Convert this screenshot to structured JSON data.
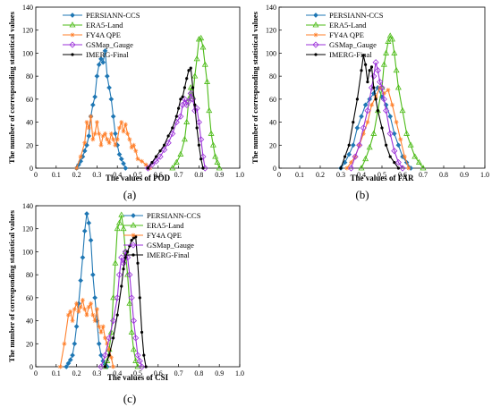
{
  "colors": {
    "PERSIANN-CCS": "#1f77b4",
    "ERA5-Land": "#4cbb17",
    "FY4A QPE": "#ff7f2a",
    "GSMap_Gauge": "#9b30d9",
    "IMERG-Final": "#000000"
  },
  "chart_data": [
    {
      "type": "line",
      "panel_label": "(a)",
      "xlabel": "The values of POD",
      "ylabel": "The number of corresponding statistical values",
      "xlim": [
        0,
        1.0
      ],
      "ylim": [
        0,
        140
      ],
      "xticks": [
        "0",
        "0.1",
        "0.2",
        "0.3",
        "0.4",
        "0.5",
        "0.6",
        "0.7",
        "0.8",
        "0.9",
        "1.0"
      ],
      "yticks": [
        "0",
        "20",
        "40",
        "60",
        "80",
        "100",
        "120",
        "140"
      ],
      "legend_position": "top-left",
      "series": [
        {
          "name": "PERSIANN-CCS",
          "x": [
            0.2,
            0.21,
            0.22,
            0.23,
            0.24,
            0.25,
            0.26,
            0.27,
            0.28,
            0.29,
            0.3,
            0.31,
            0.32,
            0.33,
            0.34,
            0.35,
            0.36,
            0.37,
            0.38,
            0.39,
            0.4,
            0.41,
            0.42,
            0.43,
            0.44
          ],
          "y": [
            0,
            3,
            6,
            10,
            15,
            20,
            28,
            45,
            55,
            62,
            80,
            90,
            95,
            92,
            102,
            80,
            70,
            60,
            45,
            30,
            20,
            12,
            8,
            4,
            0
          ]
        },
        {
          "name": "ERA5-Land",
          "x": [
            0.67,
            0.69,
            0.71,
            0.73,
            0.74,
            0.75,
            0.76,
            0.77,
            0.78,
            0.79,
            0.8,
            0.81,
            0.82,
            0.83,
            0.84,
            0.85,
            0.86,
            0.87,
            0.88,
            0.89,
            0.9
          ],
          "y": [
            0,
            5,
            12,
            25,
            40,
            60,
            70,
            62,
            80,
            95,
            112,
            113,
            105,
            90,
            75,
            50,
            30,
            20,
            10,
            5,
            0
          ]
        },
        {
          "name": "FY4A QPE",
          "x": [
            0.2,
            0.22,
            0.24,
            0.25,
            0.26,
            0.27,
            0.28,
            0.29,
            0.3,
            0.31,
            0.32,
            0.33,
            0.34,
            0.35,
            0.36,
            0.37,
            0.38,
            0.39,
            0.4,
            0.41,
            0.42,
            0.43,
            0.44,
            0.45,
            0.46,
            0.47,
            0.48,
            0.49,
            0.5,
            0.52,
            0.54,
            0.56
          ],
          "y": [
            0,
            10,
            22,
            40,
            35,
            45,
            25,
            30,
            40,
            30,
            20,
            28,
            30,
            25,
            22,
            30,
            25,
            20,
            25,
            35,
            40,
            32,
            38,
            30,
            25,
            18,
            20,
            15,
            8,
            6,
            3,
            0
          ]
        },
        {
          "name": "GSMap_Gauge",
          "x": [
            0.55,
            0.57,
            0.59,
            0.61,
            0.63,
            0.65,
            0.67,
            0.69,
            0.71,
            0.72,
            0.73,
            0.74,
            0.75,
            0.76,
            0.77,
            0.78,
            0.79,
            0.8,
            0.81,
            0.82,
            0.83
          ],
          "y": [
            0,
            3,
            6,
            10,
            16,
            22,
            30,
            40,
            45,
            55,
            60,
            55,
            58,
            65,
            60,
            50,
            52,
            40,
            25,
            10,
            0
          ]
        },
        {
          "name": "IMERG-Final",
          "x": [
            0.55,
            0.57,
            0.59,
            0.61,
            0.63,
            0.65,
            0.67,
            0.69,
            0.7,
            0.71,
            0.72,
            0.73,
            0.74,
            0.75,
            0.76,
            0.77,
            0.78,
            0.79,
            0.8,
            0.81,
            0.82
          ],
          "y": [
            0,
            5,
            10,
            15,
            20,
            28,
            35,
            45,
            52,
            60,
            62,
            70,
            78,
            85,
            87,
            70,
            55,
            35,
            20,
            8,
            0
          ]
        }
      ]
    },
    {
      "type": "line",
      "panel_label": "(b)",
      "xlabel": "The values of FAR",
      "ylabel": "The number of corresponding statistical values",
      "xlim": [
        0,
        1.0
      ],
      "ylim": [
        0,
        140
      ],
      "xticks": [
        "0",
        "0.1",
        "0.2",
        "0.3",
        "0.4",
        "0.5",
        "0.6",
        "0.7",
        "0.8",
        "0.9",
        "1.0"
      ],
      "yticks": [
        "0",
        "20",
        "40",
        "60",
        "80",
        "100",
        "120",
        "140"
      ],
      "legend_position": "top-left",
      "series": [
        {
          "name": "PERSIANN-CCS",
          "x": [
            0.3,
            0.32,
            0.34,
            0.36,
            0.38,
            0.4,
            0.42,
            0.44,
            0.46,
            0.48,
            0.5,
            0.52,
            0.54,
            0.56,
            0.58,
            0.6,
            0.62,
            0.64
          ],
          "y": [
            0,
            5,
            12,
            20,
            35,
            45,
            55,
            60,
            65,
            70,
            62,
            55,
            45,
            30,
            20,
            10,
            5,
            0
          ]
        },
        {
          "name": "ERA5-Land",
          "x": [
            0.4,
            0.42,
            0.44,
            0.46,
            0.48,
            0.5,
            0.51,
            0.52,
            0.53,
            0.54,
            0.55,
            0.56,
            0.57,
            0.58,
            0.6,
            0.62,
            0.64,
            0.66,
            0.68,
            0.7
          ],
          "y": [
            0,
            8,
            18,
            30,
            50,
            70,
            90,
            100,
            110,
            115,
            112,
            100,
            85,
            70,
            50,
            30,
            20,
            10,
            5,
            0
          ]
        },
        {
          "name": "FY4A QPE",
          "x": [
            0.33,
            0.35,
            0.37,
            0.39,
            0.41,
            0.43,
            0.45,
            0.47,
            0.49,
            0.51,
            0.53,
            0.55,
            0.57,
            0.59,
            0.61,
            0.63
          ],
          "y": [
            0,
            5,
            10,
            20,
            30,
            40,
            55,
            62,
            70,
            65,
            68,
            55,
            40,
            25,
            10,
            0
          ]
        },
        {
          "name": "GSMap_Gauge",
          "x": [
            0.35,
            0.37,
            0.39,
            0.41,
            0.43,
            0.45,
            0.46,
            0.47,
            0.48,
            0.49,
            0.5,
            0.51,
            0.52,
            0.54,
            0.56,
            0.58,
            0.6
          ],
          "y": [
            0,
            10,
            20,
            35,
            50,
            70,
            80,
            92,
            85,
            75,
            70,
            60,
            50,
            30,
            15,
            5,
            0
          ]
        },
        {
          "name": "IMERG-Final",
          "x": [
            0.3,
            0.32,
            0.34,
            0.36,
            0.38,
            0.4,
            0.41,
            0.42,
            0.43,
            0.44,
            0.45,
            0.46,
            0.47,
            0.48,
            0.5,
            0.52,
            0.54,
            0.56,
            0.58
          ],
          "y": [
            0,
            10,
            20,
            40,
            60,
            85,
            98,
            90,
            75,
            85,
            88,
            70,
            60,
            50,
            35,
            20,
            10,
            5,
            0
          ]
        }
      ]
    },
    {
      "type": "line",
      "panel_label": "(c)",
      "xlabel": "The values of CSI",
      "ylabel": "The number of corresponding statistical values",
      "xlim": [
        0,
        1.0
      ],
      "ylim": [
        0,
        140
      ],
      "xticks": [
        "0",
        "0.1",
        "0.2",
        "0.3",
        "0.4",
        "0.5",
        "0.6",
        "0.7",
        "0.8",
        "0.9",
        "1.0"
      ],
      "yticks": [
        "0",
        "20",
        "40",
        "60",
        "80",
        "100",
        "120",
        "140"
      ],
      "legend_position": "top-right",
      "series": [
        {
          "name": "PERSIANN-CCS",
          "x": [
            0.15,
            0.16,
            0.17,
            0.18,
            0.19,
            0.2,
            0.21,
            0.22,
            0.23,
            0.24,
            0.25,
            0.26,
            0.27,
            0.28,
            0.29,
            0.3,
            0.31,
            0.32,
            0.33,
            0.34,
            0.35
          ],
          "y": [
            0,
            3,
            6,
            10,
            20,
            35,
            55,
            75,
            95,
            118,
            133,
            125,
            110,
            80,
            60,
            40,
            20,
            10,
            5,
            2,
            0
          ]
        },
        {
          "name": "ERA5-Land",
          "x": [
            0.34,
            0.35,
            0.36,
            0.37,
            0.38,
            0.39,
            0.4,
            0.41,
            0.42,
            0.43,
            0.44,
            0.45,
            0.46,
            0.47,
            0.48,
            0.49,
            0.5
          ],
          "y": [
            0,
            5,
            15,
            30,
            60,
            90,
            120,
            125,
            132,
            120,
            100,
            80,
            55,
            30,
            15,
            5,
            0
          ]
        },
        {
          "name": "FY4A QPE",
          "x": [
            0.12,
            0.14,
            0.16,
            0.17,
            0.18,
            0.19,
            0.2,
            0.21,
            0.22,
            0.23,
            0.24,
            0.25,
            0.26,
            0.27,
            0.28,
            0.29,
            0.3,
            0.31,
            0.32,
            0.33,
            0.34,
            0.35,
            0.36,
            0.37,
            0.38
          ],
          "y": [
            0,
            20,
            45,
            48,
            40,
            50,
            55,
            48,
            52,
            58,
            50,
            45,
            52,
            55,
            45,
            40,
            50,
            35,
            30,
            35,
            25,
            20,
            15,
            8,
            0
          ]
        },
        {
          "name": "GSMap_Gauge",
          "x": [
            0.32,
            0.34,
            0.36,
            0.38,
            0.4,
            0.41,
            0.42,
            0.43,
            0.44,
            0.45,
            0.46,
            0.47,
            0.48,
            0.49,
            0.5,
            0.51,
            0.52
          ],
          "y": [
            0,
            10,
            25,
            40,
            60,
            80,
            95,
            90,
            100,
            95,
            80,
            60,
            40,
            25,
            10,
            5,
            0
          ]
        },
        {
          "name": "IMERG-Final",
          "x": [
            0.34,
            0.36,
            0.38,
            0.4,
            0.42,
            0.43,
            0.44,
            0.45,
            0.46,
            0.47,
            0.48,
            0.49,
            0.5,
            0.51,
            0.52,
            0.53,
            0.54
          ],
          "y": [
            0,
            10,
            25,
            45,
            70,
            85,
            95,
            100,
            105,
            110,
            112,
            113,
            90,
            60,
            30,
            10,
            0
          ]
        }
      ]
    }
  ]
}
